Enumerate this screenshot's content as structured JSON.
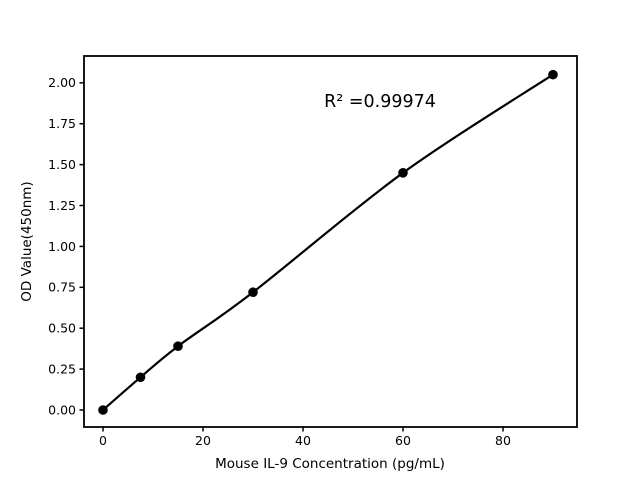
{
  "figure": {
    "background_color": "#ffffff",
    "foreground_color": "#000000"
  },
  "chart_data": {
    "type": "scatter",
    "subtype": "standard-curve-with-smooth-fit-line",
    "title": "",
    "xlabel": "Mouse IL-9 Concentration (pg/mL)",
    "ylabel": "OD Value(450nm)",
    "x": [
      0,
      7.5,
      15,
      30,
      60,
      90
    ],
    "y": [
      0.0,
      0.2,
      0.39,
      0.72,
      1.45,
      2.05
    ],
    "x_tick_values": [
      0,
      20,
      40,
      60,
      80
    ],
    "x_tick_labels": [
      "0",
      "20",
      "40",
      "60",
      "80"
    ],
    "y_tick_values": [
      0.0,
      0.25,
      0.5,
      0.75,
      1.0,
      1.25,
      1.5,
      1.75,
      2.0
    ],
    "y_tick_labels": [
      "0.00",
      "0.25",
      "0.50",
      "0.75",
      "1.00",
      "1.25",
      "1.50",
      "1.75",
      "2.00"
    ],
    "xlim": [
      -3.8,
      94.8
    ],
    "ylim": [
      -0.104,
      2.164
    ],
    "grid": false,
    "legend": "none",
    "annotation": {
      "text": "R² =0.99974",
      "r_squared": 0.99974,
      "x": 55.4,
      "y": 1.89
    },
    "line_color": "#000000",
    "marker_color": "#000000",
    "marker_shape": "circle"
  }
}
